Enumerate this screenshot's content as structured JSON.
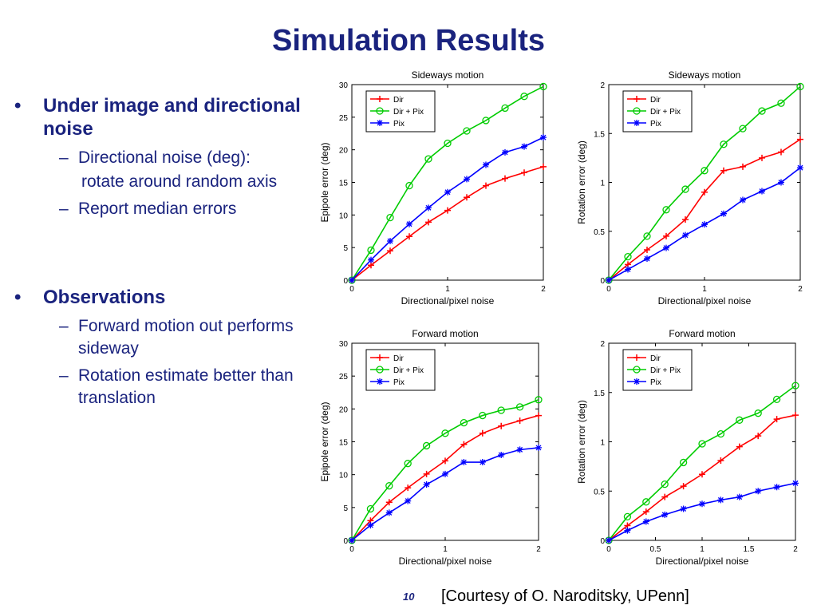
{
  "slide": {
    "title": "Simulation Results",
    "bullets": [
      {
        "text": "Under image and directional noise",
        "sub": [
          {
            "text": "Directional noise (deg):",
            "cont": "rotate around random axis"
          },
          {
            "text": "Report median errors"
          }
        ]
      },
      {
        "text": "Observations",
        "sub": [
          {
            "text": "Forward motion out performs sideway"
          },
          {
            "text": "Rotation estimate better than translation"
          }
        ]
      }
    ],
    "page_number": "10",
    "credit": "[Courtesy of O. Naroditsky, UPenn]"
  },
  "chart_data": [
    {
      "type": "line",
      "title": "Sideways motion",
      "xlabel": "Directional/pixel noise",
      "ylabel": "Epipole error (deg)",
      "xlim": [
        0,
        2
      ],
      "ylim": [
        0,
        30
      ],
      "xticks": [
        "0",
        "1",
        "2"
      ],
      "yticks": [
        "0",
        "5",
        "10",
        "15",
        "20",
        "25",
        "30"
      ],
      "xtick_values": [
        0,
        1,
        2
      ],
      "ytick_values": [
        0,
        5,
        10,
        15,
        20,
        25,
        30
      ],
      "legend": "top-left",
      "x": [
        0,
        0.2,
        0.4,
        0.6,
        0.8,
        1.0,
        1.2,
        1.4,
        1.6,
        1.8,
        2.0
      ],
      "series": [
        {
          "name": "Dir",
          "color": "#ff0000",
          "marker": "plus",
          "values": [
            0,
            2.3,
            4.5,
            6.7,
            8.9,
            10.7,
            12.7,
            14.5,
            15.6,
            16.5,
            17.4
          ]
        },
        {
          "name": "Dir + Pix",
          "color": "#00cc00",
          "marker": "circle",
          "values": [
            0,
            4.6,
            9.6,
            14.5,
            18.6,
            21.0,
            22.9,
            24.5,
            26.4,
            28.2,
            29.7
          ]
        },
        {
          "name": "Pix",
          "color": "#0000ff",
          "marker": "star",
          "values": [
            0,
            3.1,
            6.0,
            8.6,
            11.1,
            13.5,
            15.5,
            17.7,
            19.6,
            20.5,
            21.9
          ]
        }
      ]
    },
    {
      "type": "line",
      "title": "Sideways motion",
      "xlabel": "Directional/pixel noise",
      "ylabel": "Rotation error (deg)",
      "xlim": [
        0,
        2
      ],
      "ylim": [
        0,
        2
      ],
      "xticks": [
        "0",
        "1",
        "2"
      ],
      "yticks": [
        "0",
        "0.5",
        "1",
        "1.5",
        "2"
      ],
      "xtick_values": [
        0,
        1,
        2
      ],
      "ytick_values": [
        0,
        0.5,
        1,
        1.5,
        2
      ],
      "legend": "top-left",
      "x": [
        0,
        0.2,
        0.4,
        0.6,
        0.8,
        1.0,
        1.2,
        1.4,
        1.6,
        1.8,
        2.0
      ],
      "series": [
        {
          "name": "Dir",
          "color": "#ff0000",
          "marker": "plus",
          "values": [
            0,
            0.16,
            0.31,
            0.45,
            0.62,
            0.9,
            1.12,
            1.16,
            1.25,
            1.31,
            1.44
          ]
        },
        {
          "name": "Dir + Pix",
          "color": "#00cc00",
          "marker": "circle",
          "values": [
            0,
            0.24,
            0.45,
            0.72,
            0.93,
            1.12,
            1.39,
            1.55,
            1.73,
            1.81,
            1.98
          ]
        },
        {
          "name": "Pix",
          "color": "#0000ff",
          "marker": "star",
          "values": [
            0,
            0.11,
            0.22,
            0.33,
            0.46,
            0.57,
            0.68,
            0.82,
            0.91,
            1.0,
            1.15
          ]
        }
      ]
    },
    {
      "type": "line",
      "title": "Forward motion",
      "xlabel": "Directional/pixel noise",
      "ylabel": "Epipole error (deg)",
      "xlim": [
        0,
        2
      ],
      "ylim": [
        0,
        30
      ],
      "xticks": [
        "0",
        "1",
        "2"
      ],
      "yticks": [
        "0",
        "5",
        "10",
        "15",
        "20",
        "25",
        "30"
      ],
      "xtick_values": [
        0,
        1,
        2
      ],
      "ytick_values": [
        0,
        5,
        10,
        15,
        20,
        25,
        30
      ],
      "legend": "top-left",
      "x": [
        0,
        0.2,
        0.4,
        0.6,
        0.8,
        1.0,
        1.2,
        1.4,
        1.6,
        1.8,
        2.0
      ],
      "series": [
        {
          "name": "Dir",
          "color": "#ff0000",
          "marker": "plus",
          "values": [
            0,
            3.0,
            5.8,
            8.0,
            10.1,
            12.1,
            14.6,
            16.3,
            17.4,
            18.2,
            19.0
          ]
        },
        {
          "name": "Dir + Pix",
          "color": "#00cc00",
          "marker": "circle",
          "values": [
            0,
            4.8,
            8.3,
            11.7,
            14.4,
            16.3,
            17.9,
            19.0,
            19.8,
            20.3,
            21.4
          ]
        },
        {
          "name": "Pix",
          "color": "#0000ff",
          "marker": "star",
          "values": [
            0,
            2.3,
            4.2,
            6.0,
            8.5,
            10.1,
            11.9,
            11.9,
            13.0,
            13.8,
            14.1
          ]
        }
      ]
    },
    {
      "type": "line",
      "title": "Forward motion",
      "xlabel": "Directional/pixel noise",
      "ylabel": "Rotation error (deg)",
      "xlim": [
        0,
        2
      ],
      "ylim": [
        0,
        2
      ],
      "xticks": [
        "0",
        "0.5",
        "1",
        "1.5",
        "2"
      ],
      "yticks": [
        "0",
        "0.5",
        "1",
        "1.5",
        "2"
      ],
      "xtick_values": [
        0,
        0.5,
        1,
        1.5,
        2
      ],
      "ytick_values": [
        0,
        0.5,
        1,
        1.5,
        2
      ],
      "legend": "top-left",
      "x": [
        0,
        0.2,
        0.4,
        0.6,
        0.8,
        1.0,
        1.2,
        1.4,
        1.6,
        1.8,
        2.0
      ],
      "series": [
        {
          "name": "Dir",
          "color": "#ff0000",
          "marker": "plus",
          "values": [
            0,
            0.15,
            0.29,
            0.44,
            0.55,
            0.67,
            0.81,
            0.95,
            1.06,
            1.23,
            1.27
          ]
        },
        {
          "name": "Dir + Pix",
          "color": "#00cc00",
          "marker": "circle",
          "values": [
            0,
            0.24,
            0.39,
            0.57,
            0.79,
            0.98,
            1.08,
            1.22,
            1.29,
            1.43,
            1.57
          ]
        },
        {
          "name": "Pix",
          "color": "#0000ff",
          "marker": "star",
          "values": [
            0,
            0.1,
            0.19,
            0.26,
            0.32,
            0.37,
            0.41,
            0.44,
            0.5,
            0.54,
            0.58
          ]
        }
      ]
    }
  ]
}
